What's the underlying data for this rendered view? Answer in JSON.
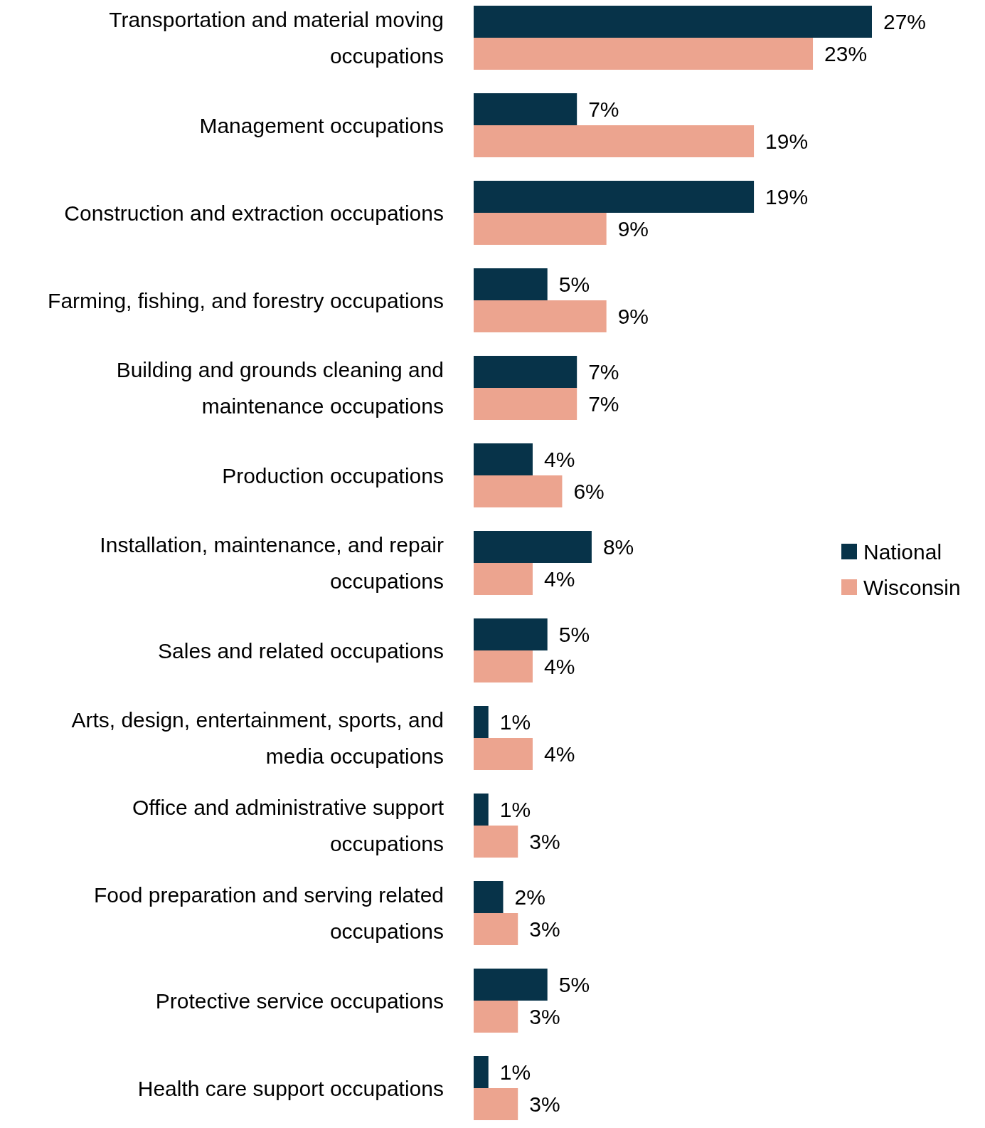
{
  "chart_data": {
    "type": "bar",
    "orientation": "horizontal",
    "legend": "right",
    "categories": [
      "Transportation and material moving occupations",
      "Management occupations",
      "Construction and extraction occupations",
      "Farming, fishing, and forestry occupations",
      "Building and grounds cleaning and maintenance occupations",
      "Production occupations",
      "Installation, maintenance, and repair occupations",
      "Sales and related occupations",
      "Arts, design, entertainment, sports, and media occupations",
      "Office and administrative support occupations",
      "Food preparation and serving related occupations",
      "Protective service occupations",
      "Health care support occupations"
    ],
    "series": [
      {
        "name": "National",
        "color": "#073349",
        "values": [
          27,
          7,
          19,
          5,
          7,
          4,
          8,
          5,
          1,
          1,
          2,
          5,
          1
        ],
        "value_labels": [
          "27%",
          "7%",
          "19%",
          "5%",
          "7%",
          "4%",
          "8%",
          "5%",
          "1%",
          "1%",
          "2%",
          "5%",
          "1%"
        ]
      },
      {
        "name": "Wisconsin",
        "color": "#eca48f",
        "values": [
          23,
          19,
          9,
          9,
          7,
          6,
          4,
          4,
          4,
          3,
          3,
          3,
          3
        ],
        "value_labels": [
          "23%",
          "19%",
          "9%",
          "9%",
          "7%",
          "6%",
          "4%",
          "4%",
          "4%",
          "3%",
          "3%",
          "3%",
          "3%"
        ]
      }
    ]
  }
}
